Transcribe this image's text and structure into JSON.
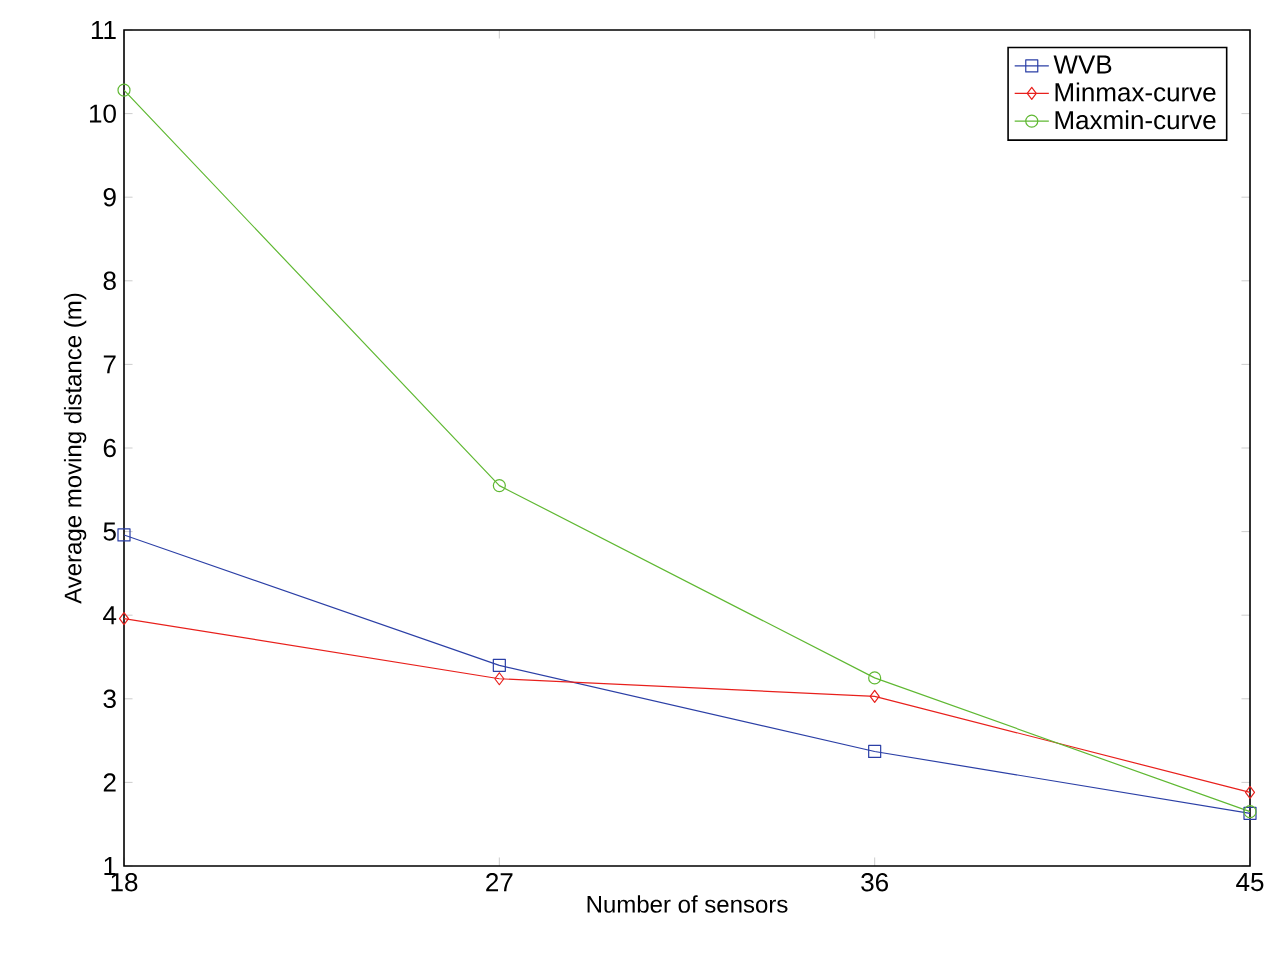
{
  "chart_data": {
    "type": "line",
    "xlabel": "Number of sensors",
    "ylabel": "Average moving distance (m)",
    "x": [
      18,
      27,
      36,
      45
    ],
    "series": [
      {
        "name": "WVB",
        "color": "#2b3fa6",
        "marker": "square",
        "values": [
          4.96,
          3.4,
          2.37,
          1.63
        ]
      },
      {
        "name": "Minmax-curve",
        "color": "#e8201c",
        "marker": "diamond",
        "values": [
          3.96,
          3.24,
          3.03,
          1.88
        ]
      },
      {
        "name": "Maxmin-curve",
        "color": "#5fb832",
        "marker": "circle",
        "values": [
          10.28,
          5.55,
          3.25,
          1.65
        ]
      }
    ],
    "xlim": [
      18,
      45
    ],
    "ylim": [
      1,
      11
    ],
    "xticks": [
      18,
      27,
      36,
      45
    ],
    "yticks": [
      1,
      2,
      3,
      4,
      5,
      6,
      7,
      8,
      9,
      10,
      11
    ],
    "grid": false,
    "legend": "top right",
    "line_style": "solid"
  }
}
